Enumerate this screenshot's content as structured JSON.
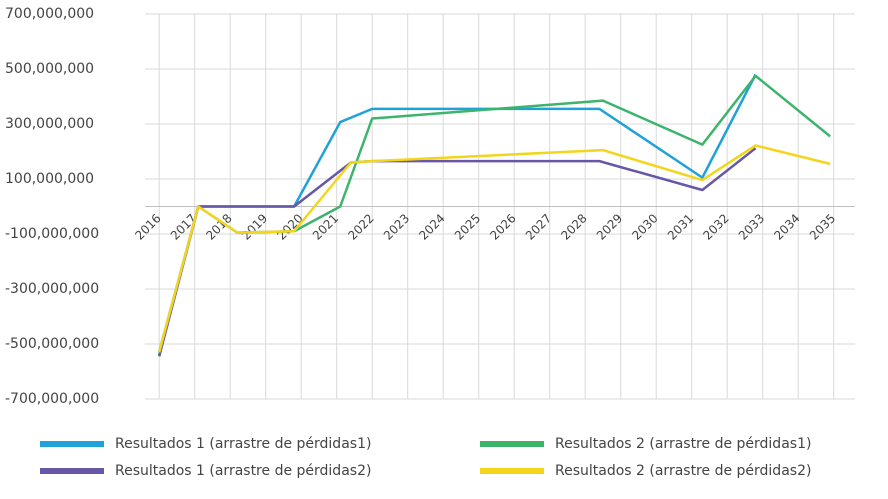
{
  "chart_data": {
    "type": "line",
    "xlim": [
      2015.6,
      2035.6
    ],
    "xticks": [
      2016,
      2017,
      2018,
      2019,
      2020,
      2021,
      2022,
      2023,
      2024,
      2025,
      2026,
      2027,
      2028,
      2029,
      2030,
      2031,
      2032,
      2033,
      2034,
      2035
    ],
    "ylim": [
      -700000000,
      700000000
    ],
    "yticks": [
      {
        "value": -700000000,
        "label": "-700,000,000"
      },
      {
        "value": -500000000,
        "label": "-500,000,000"
      },
      {
        "value": -300000000,
        "label": "-300,000,000"
      },
      {
        "value": -100000000,
        "label": "-100,000,000"
      },
      {
        "value": 100000000,
        "label": "100,000,000"
      },
      {
        "value": 300000000,
        "label": "300,000,000"
      },
      {
        "value": 500000000,
        "label": "500,000,000"
      },
      {
        "value": 700000000,
        "label": "700,000,000"
      }
    ],
    "grid": true,
    "legend": "bottom",
    "series": [
      {
        "name": "Resultados 1 (arrastre de pérdidas1)",
        "color": "#1fa2d8",
        "x": [
          2016,
          2017.1,
          2019.8,
          2021.1,
          2022,
          2028.4,
          2031.3,
          2032.8
        ],
        "values": [
          -529000000,
          0,
          0,
          307000000,
          355000000,
          355000000,
          105000000,
          480000000
        ]
      },
      {
        "name": "Resultados 2 (arrastre de pérdidas1)",
        "color": "#3db46c",
        "x": [
          2016,
          2017.1,
          2018.2,
          2019.8,
          2021.1,
          2022,
          2028.5,
          2031.3,
          2032.8,
          2034.9
        ],
        "values": [
          -540000000,
          0,
          -95000000,
          -90000000,
          0,
          320000000,
          385000000,
          225000000,
          475000000,
          255000000
        ]
      },
      {
        "name": "Resultados 1 (arrastre de pérdidas2)",
        "color": "#6757a6",
        "x": [
          2016,
          2017.1,
          2019.8,
          2021.4,
          2022,
          2028.4,
          2031.3,
          2032.8
        ],
        "values": [
          -545000000,
          0,
          0,
          160000000,
          165000000,
          165000000,
          60000000,
          212000000
        ]
      },
      {
        "name": "Resultados 2 (arrastre de pérdidas2)",
        "color": "#f3d51c",
        "x": [
          2016,
          2017.1,
          2018.2,
          2019.8,
          2021.4,
          2022,
          2028.5,
          2031.3,
          2032.8,
          2034.9
        ],
        "values": [
          -530000000,
          0,
          -95000000,
          -90000000,
          160000000,
          165000000,
          205000000,
          96000000,
          222000000,
          155000000
        ]
      }
    ]
  }
}
